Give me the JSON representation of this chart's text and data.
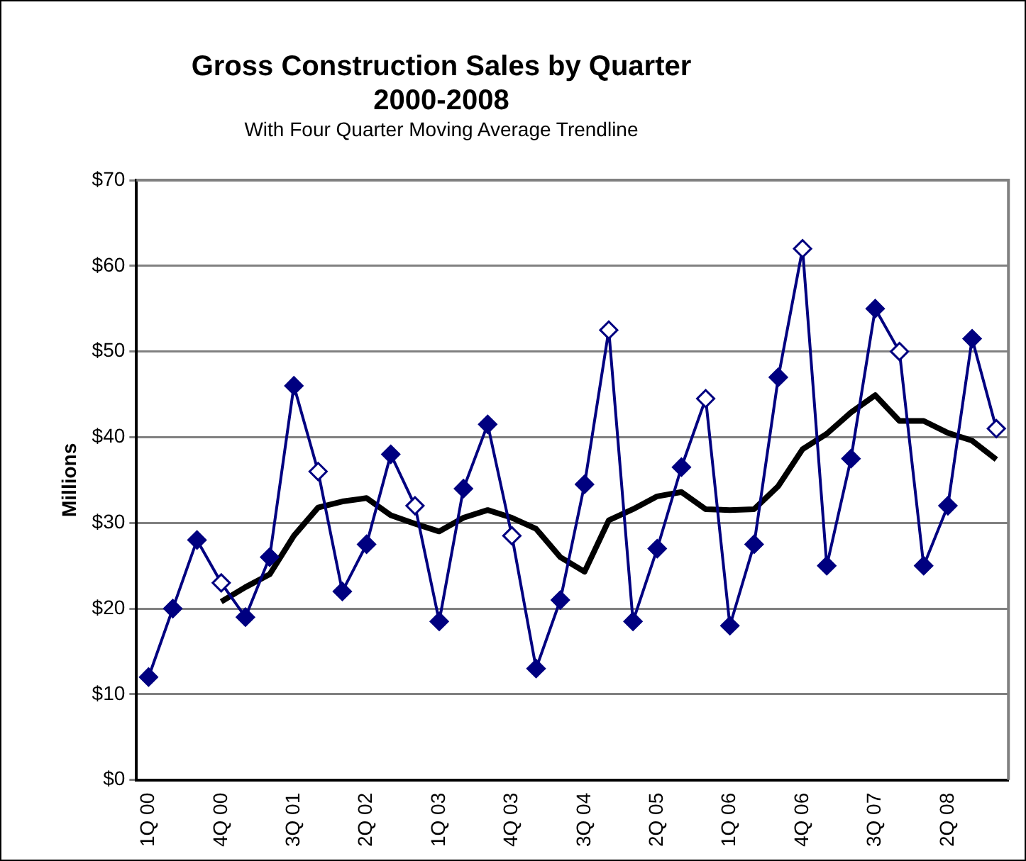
{
  "chart_data": {
    "type": "line",
    "title": "Gross Construction Sales by Quarter 2000-2008",
    "subtitle": "With Four Quarter Moving Average Trendline",
    "ylabel": "Millions",
    "categories": [
      "1Q 00",
      null,
      null,
      "4Q 00",
      null,
      null,
      "3Q 01",
      null,
      null,
      "2Q 02",
      null,
      null,
      "1Q 03",
      null,
      null,
      "4Q 03",
      null,
      null,
      "3Q 04",
      null,
      null,
      "2Q 05",
      null,
      null,
      "1Q 06",
      null,
      null,
      "4Q 06",
      null,
      null,
      "3Q 07",
      null,
      null,
      "2Q 08",
      null,
      null
    ],
    "series": [
      {
        "color": "#000080",
        "marker": "diamond",
        "values": [
          12,
          20,
          28,
          23,
          19,
          26,
          46,
          36,
          22,
          27.5,
          38,
          32,
          18.5,
          34,
          41.5,
          28.5,
          13,
          21,
          34.5,
          52.5,
          18.5,
          27,
          36.5,
          44.5,
          18,
          27.5,
          47,
          62,
          25,
          37.5,
          55,
          50,
          25,
          32,
          51.5,
          41
        ],
        "colors": [
          "#000080",
          "#000080",
          "#000080",
          "#ffffff",
          "#000080",
          "#000080",
          "#000080",
          "#ffffff",
          "#000080",
          "#000080",
          "#000080",
          "#ffffff",
          "#000080",
          "#000080",
          "#000080",
          "#ffffff",
          "#000080",
          "#000080",
          "#000080",
          "#ffffff",
          "#000080",
          "#000080",
          "#000080",
          "#ffffff",
          "#000080",
          "#000080",
          "#000080",
          "#ffffff",
          "#000080",
          "#000080",
          "#000080",
          "#ffffff",
          "#000080",
          "#000080",
          "#000080",
          "#ffffff"
        ]
      },
      {
        "color": "#000000",
        "marker": "none",
        "values": [
          null,
          null,
          null,
          20.8,
          22.5,
          24,
          28.5,
          31.8,
          32.5,
          32.9,
          30.9,
          29.9,
          29,
          30.6,
          31.5,
          30.6,
          29.3,
          26,
          24.3,
          30.3,
          31.6,
          33.1,
          33.6,
          31.6,
          31.5,
          31.6,
          34.3,
          38.6,
          40.4,
          42.9,
          44.9,
          41.9,
          41.9,
          40.5,
          39.6,
          37.4
        ]
      }
    ],
    "ylim": [
      0,
      70
    ],
    "yticks": [
      {
        "value": 0,
        "label": "$0"
      },
      {
        "value": 10,
        "label": "$10"
      },
      {
        "value": 20,
        "label": "$20"
      },
      {
        "value": 30,
        "label": "$30"
      },
      {
        "value": 40,
        "label": "$40"
      },
      {
        "value": 50,
        "label": "$50"
      },
      {
        "value": 60,
        "label": "$60"
      },
      {
        "value": 70,
        "label": "$70"
      }
    ],
    "grid": "y",
    "legend": false
  }
}
